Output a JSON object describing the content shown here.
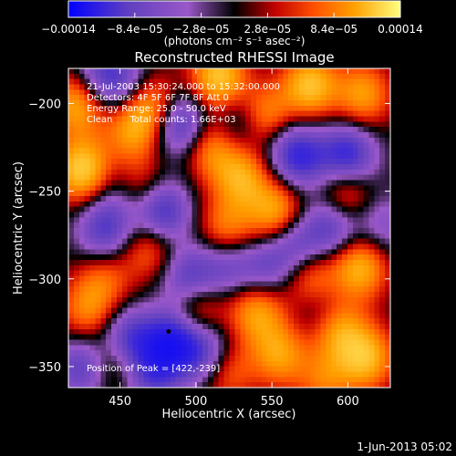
{
  "chart_data": {
    "type": "heatmap",
    "title": "Reconstructed RHESSI Image",
    "xlabel": "Heliocentric X (arcsec)",
    "ylabel": "Heliocentric Y (arcsec)",
    "xlim": [
      416,
      628
    ],
    "ylim": [
      -362,
      -180
    ],
    "xticks": [
      {
        "value": 450,
        "label": "450"
      },
      {
        "value": 500,
        "label": "500"
      },
      {
        "value": 550,
        "label": "550"
      },
      {
        "value": 600,
        "label": "600"
      }
    ],
    "yticks": [
      {
        "value": -200,
        "label": "−200"
      },
      {
        "value": -250,
        "label": "−250"
      },
      {
        "value": -300,
        "label": "−300"
      },
      {
        "value": -350,
        "label": "−350"
      }
    ],
    "colorbar": {
      "min": -0.00014,
      "max": 0.00014,
      "ticks": [
        {
          "value": -0.00014,
          "label": "−0.00014"
        },
        {
          "value": -8.4e-05,
          "label": "−8.4e−05"
        },
        {
          "value": -2.8e-05,
          "label": "−2.8e−05"
        },
        {
          "value": 2.8e-05,
          "label": "2.8e−05"
        },
        {
          "value": 8.4e-05,
          "label": "8.4e−05"
        },
        {
          "value": 0.00014,
          "label": "0.00014"
        }
      ],
      "units": "(photons cm⁻² s⁻¹ asec⁻²)",
      "colors": [
        "#0000ff",
        "#6040c0",
        "#9a58c8",
        "#000000",
        "#c00000",
        "#ff5000",
        "#ffa000",
        "#ffff80"
      ]
    },
    "annotations": {
      "time_range": "21-Jul-2003 15:30:24.000 to 15:32:00.000",
      "detectors": "Detectors: 4F 5F 6F 7F 8F  Att 0",
      "energy": "Energy Range: 25.0 - 50.0 keV",
      "method": "Clean      Total counts: 1.66E+03",
      "peak": "Position of Peak = [422,-239]"
    },
    "peak_marker": {
      "x": 482,
      "y": -330
    },
    "footer_date": "1-Jun-2013 05:02",
    "blobs": [
      {
        "x": 425,
        "y": -238,
        "v": 1.0
      },
      {
        "x": 422,
        "y": -200,
        "v": 0.8
      },
      {
        "x": 470,
        "y": -200,
        "v": 0.7
      },
      {
        "x": 515,
        "y": -185,
        "v": 0.95
      },
      {
        "x": 575,
        "y": -190,
        "v": 0.9
      },
      {
        "x": 610,
        "y": -195,
        "v": 0.7
      },
      {
        "x": 545,
        "y": -208,
        "v": 0.75
      },
      {
        "x": 458,
        "y": -215,
        "v": 0.65
      },
      {
        "x": 510,
        "y": -225,
        "v": 0.65
      },
      {
        "x": 530,
        "y": -242,
        "v": 0.75
      },
      {
        "x": 463,
        "y": -248,
        "v": 0.5
      },
      {
        "x": 553,
        "y": -262,
        "v": 0.8
      },
      {
        "x": 520,
        "y": -272,
        "v": 0.6
      },
      {
        "x": 470,
        "y": -282,
        "v": 0.55
      },
      {
        "x": 598,
        "y": -252,
        "v": 0.65
      },
      {
        "x": 608,
        "y": -293,
        "v": 0.85
      },
      {
        "x": 576,
        "y": -300,
        "v": 0.6
      },
      {
        "x": 540,
        "y": -318,
        "v": 0.75
      },
      {
        "x": 500,
        "y": -318,
        "v": 0.65
      },
      {
        "x": 555,
        "y": -343,
        "v": 0.7
      },
      {
        "x": 593,
        "y": -328,
        "v": 0.75
      },
      {
        "x": 612,
        "y": -345,
        "v": 0.85
      },
      {
        "x": 585,
        "y": -358,
        "v": 0.5
      },
      {
        "x": 428,
        "y": -318,
        "v": 0.55
      },
      {
        "x": 445,
        "y": -347,
        "v": 0.55
      },
      {
        "x": 520,
        "y": -352,
        "v": 0.55
      },
      {
        "x": 440,
        "y": -300,
        "v": 0.45
      },
      {
        "x": 450,
        "y": -250,
        "v": -0.3
      },
      {
        "x": 440,
        "y": -272,
        "v": -0.7
      },
      {
        "x": 477,
        "y": -262,
        "v": -0.9
      },
      {
        "x": 490,
        "y": -212,
        "v": -0.8
      },
      {
        "x": 530,
        "y": -212,
        "v": -0.5
      },
      {
        "x": 600,
        "y": -230,
        "v": -0.9
      },
      {
        "x": 570,
        "y": -232,
        "v": -0.6
      },
      {
        "x": 437,
        "y": -184,
        "v": -0.6
      },
      {
        "x": 495,
        "y": -300,
        "v": -0.7
      },
      {
        "x": 507,
        "y": -342,
        "v": -0.7
      },
      {
        "x": 485,
        "y": -335,
        "v": -1.0
      },
      {
        "x": 455,
        "y": -335,
        "v": -0.8
      },
      {
        "x": 426,
        "y": -350,
        "v": -0.7
      },
      {
        "x": 565,
        "y": -280,
        "v": -0.6
      },
      {
        "x": 590,
        "y": -270,
        "v": -0.7
      },
      {
        "x": 545,
        "y": -295,
        "v": -0.5
      },
      {
        "x": 583,
        "y": -318,
        "v": -0.4
      },
      {
        "x": 520,
        "y": -292,
        "v": -0.5
      },
      {
        "x": 472,
        "y": -355,
        "v": -0.6
      },
      {
        "x": 622,
        "y": -270,
        "v": -0.4
      },
      {
        "x": 560,
        "y": -225,
        "v": -0.4
      },
      {
        "x": 455,
        "y": -190,
        "v": -0.5
      }
    ]
  }
}
